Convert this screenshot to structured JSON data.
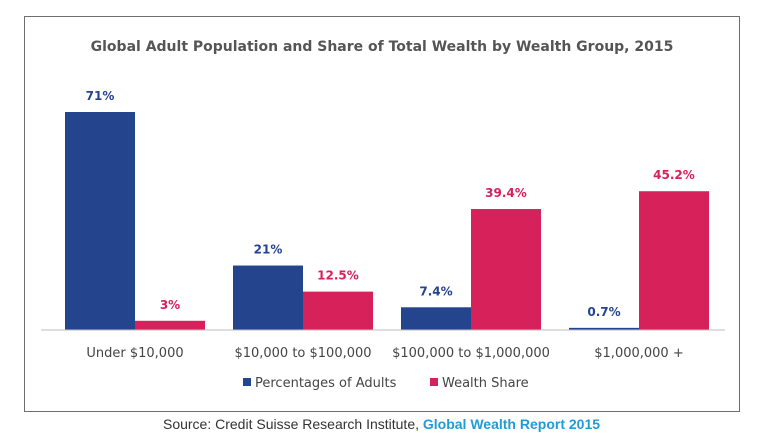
{
  "chart_data": {
    "type": "bar",
    "title": "Global Adult Population  and Share of Total Wealth by Wealth Group, 2015",
    "categories": [
      "Under $10,000",
      "$10,000 to $100,000",
      "$100,000 to $1,000,000",
      "$1,000,000 +"
    ],
    "series": [
      {
        "name": "Percentages of Adults",
        "values": [
          71,
          21,
          7.4,
          0.7
        ],
        "labels": [
          "71%",
          "21%",
          "7.4%",
          "0.7%"
        ],
        "color": "#25448e"
      },
      {
        "name": "Wealth Share",
        "values": [
          3,
          12.5,
          39.4,
          45.2
        ],
        "labels": [
          "3%",
          "12.5%",
          "39.4%",
          "45.2%"
        ],
        "color": "#d6215b"
      }
    ],
    "ylim": [
      0,
      71
    ],
    "grid": false,
    "legend_position": "bottom"
  },
  "caption": {
    "prefix": "Source: Credit Suisse Research Institute, ",
    "link_text": "Global Wealth Report 2015",
    "link_color": "#1f9bd7"
  }
}
